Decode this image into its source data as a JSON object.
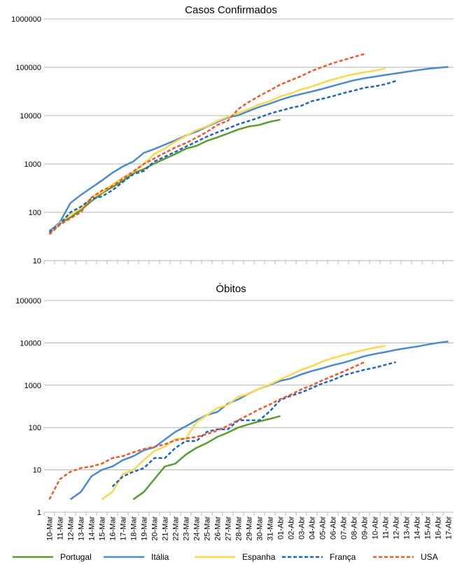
{
  "chart_data": [
    {
      "type": "line",
      "title": "Casos Confirmados",
      "log": true,
      "grid": true,
      "categories": [
        null,
        null,
        null,
        null,
        null,
        null,
        null,
        null,
        null,
        null,
        null,
        null,
        null,
        null,
        null,
        null,
        null,
        null,
        null,
        null,
        null,
        null,
        null,
        null,
        null,
        null,
        null,
        null,
        null,
        null,
        null,
        null,
        null,
        null,
        null,
        null,
        null,
        null,
        null
      ],
      "ylim": [
        10,
        1000000
      ],
      "yticks": [
        10,
        100,
        1000,
        10000,
        100000,
        1000000
      ],
      "series": [
        {
          "color": "#5a9a2e",
          "dash": false,
          "values": [
            41,
            59,
            78,
            112,
            169,
            245,
            331,
            448,
            642,
            785,
            1020,
            1280,
            1600,
            2060,
            2362,
            2995,
            3544,
            4268,
            5170,
            5962,
            6408,
            7443,
            8251,
            null,
            null,
            null,
            null,
            null,
            null,
            null,
            null,
            null,
            null,
            null,
            null,
            null,
            null,
            null,
            null
          ]
        },
        {
          "color": "#4a8ad0",
          "dash": false,
          "values": [
            40,
            62,
            155,
            229,
            322,
            453,
            655,
            888,
            1128,
            1694,
            2036,
            2502,
            3089,
            3858,
            4636,
            5883,
            7375,
            9172,
            10149,
            12462,
            15113,
            17660,
            21157,
            24747,
            27980,
            31506,
            35713,
            41035,
            47021,
            53578,
            59138,
            63927,
            69176,
            74386,
            80589,
            86498,
            92472,
            97689,
            101739
          ]
        },
        {
          "color": "#f7d84e",
          "dash": false,
          "values": [
            36,
            60,
            90,
            120,
            200,
            260,
            370,
            520,
            680,
            1000,
            1600,
            2100,
            2900,
            3800,
            5000,
            6000,
            7700,
            9500,
            11200,
            13700,
            17100,
            19900,
            24900,
            28600,
            35100,
            39700,
            47600,
            56200,
            64000,
            72200,
            78800,
            85200,
            94400,
            null,
            null,
            null,
            null,
            null,
            null
          ]
        },
        {
          "color": "#1f63c4",
          "dash": true,
          "values": [
            38,
            57,
            100,
            130,
            190,
            212,
            285,
            423,
            613,
            716,
            1126,
            1412,
            1784,
            2281,
            2876,
            3661,
            4499,
            5423,
            6633,
            7730,
            9134,
            10995,
            12612,
            14459,
            16018,
            19856,
            22304,
            25233,
            29155,
            32964,
            37575,
            40174,
            44550,
            52128,
            null,
            null,
            null,
            null,
            null
          ]
        },
        {
          "color": "#f0552b",
          "dash": true,
          "values": [
            35,
            55,
            75,
            100,
            200,
            280,
            350,
            500,
            700,
            1000,
            1300,
            1700,
            2200,
            2700,
            3500,
            4600,
            6400,
            7800,
            13700,
            19100,
            25500,
            33300,
            43800,
            53700,
            65800,
            83800,
            101700,
            121500,
            140900,
            163500,
            188200,
            null,
            null,
            null,
            null,
            null,
            null,
            null,
            null
          ]
        }
      ]
    },
    {
      "type": "line",
      "title": "Óbitos",
      "log": true,
      "grid": true,
      "legend": "bottom",
      "categories": [
        "10-Mar",
        "11-Mar",
        "12-Mar",
        "13-Mar",
        "14-Mar",
        "15-Mar",
        "16-Mar",
        "17-Mar",
        "18-Mar",
        "19-Mar",
        "20-Mar",
        "21-Mar",
        "22-Mar",
        "23-Mar",
        "24-Mar",
        "25-Mar",
        "26-Mar",
        "27-Mar",
        "28-Mar",
        "29-Mar",
        "30-Mar",
        "31-Mar",
        "01-Abr",
        "02-Abr",
        "03-Abr",
        "04-Abr",
        "05-Abr",
        "06-Abr",
        "07-Abr",
        "08-Abr",
        "09-Abr",
        "10-Abr",
        "11-Abr",
        "12-Abr",
        "13-Abr",
        "14-Abr",
        "15-Abr",
        "16-Abr",
        "17-Abr"
      ],
      "ylim": [
        1,
        100000
      ],
      "yticks": [
        1,
        10,
        100,
        1000,
        10000,
        100000
      ],
      "series": [
        {
          "name": "Portugal",
          "color": "#5a9a2e",
          "dash": false,
          "values": [
            null,
            null,
            null,
            null,
            null,
            null,
            null,
            null,
            2,
            3,
            6,
            12,
            14,
            23,
            33,
            43,
            60,
            76,
            100,
            119,
            140,
            160,
            187,
            null,
            null,
            null,
            null,
            null,
            null,
            null,
            null,
            null,
            null,
            null,
            null,
            null,
            null,
            null,
            null
          ]
        },
        {
          "name": "Itália",
          "color": "#4a8ad0",
          "dash": false,
          "values": [
            null,
            null,
            2,
            3,
            7,
            10,
            12,
            17,
            21,
            29,
            34,
            52,
            79,
            107,
            148,
            197,
            233,
            366,
            463,
            631,
            827,
            1016,
            1266,
            1441,
            1809,
            2158,
            2503,
            2978,
            3405,
            4032,
            4825,
            5476,
            6077,
            6820,
            7503,
            8165,
            9134,
            10023,
            10779
          ]
        },
        {
          "name": "Espanha",
          "color": "#f7d84e",
          "dash": false,
          "values": [
            null,
            null,
            null,
            null,
            null,
            2,
            3,
            8,
            10,
            17,
            28,
            35,
            54,
            55,
            133,
            195,
            289,
            342,
            533,
            623,
            830,
            1043,
            1375,
            1772,
            2311,
            2808,
            3647,
            4365,
            5138,
            5982,
            6803,
            7716,
            8464,
            null,
            null,
            null,
            null,
            null,
            null
          ]
        },
        {
          "name": "França",
          "color": "#1f63c4",
          "dash": true,
          "values": [
            null,
            null,
            null,
            null,
            null,
            null,
            4,
            7,
            9,
            11,
            19,
            19,
            33,
            48,
            48,
            79,
            91,
            91,
            148,
            148,
            148,
            243,
            450,
            562,
            674,
            860,
            1100,
            1331,
            1696,
            1995,
            2314,
            2606,
            3024,
            3523,
            null,
            null,
            null,
            null,
            null
          ]
        },
        {
          "name": "USA",
          "color": "#f0552b",
          "dash": true,
          "values": [
            2,
            6,
            9,
            11,
            12,
            14,
            19,
            21,
            26,
            31,
            35,
            40,
            50,
            55,
            60,
            70,
            85,
            110,
            150,
            200,
            270,
            350,
            470,
            600,
            800,
            1000,
            1300,
            1650,
            2100,
            2700,
            3500,
            null,
            null,
            null,
            null,
            null,
            null,
            null,
            null
          ]
        }
      ]
    }
  ]
}
